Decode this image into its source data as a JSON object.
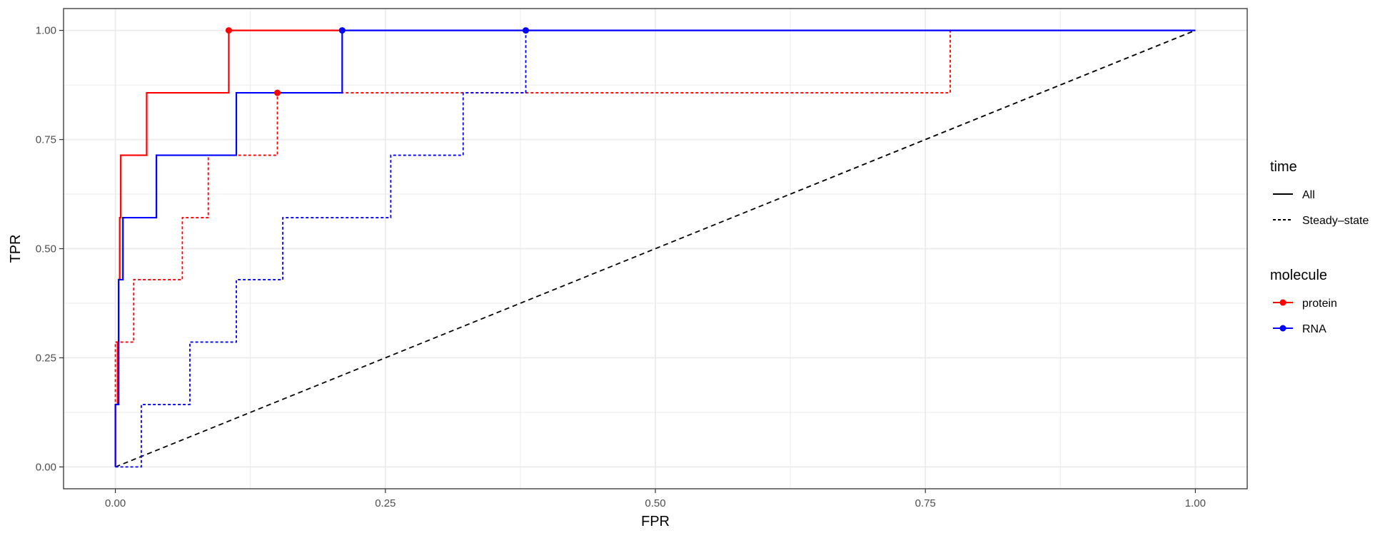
{
  "chart_data": {
    "type": "line",
    "xlabel": "FPR",
    "ylabel": "TPR",
    "xlim": [
      -0.048,
      1.048
    ],
    "ylim": [
      -0.05,
      1.05
    ],
    "x_ticks": [
      "0.00",
      "0.25",
      "0.50",
      "0.75",
      "1.00"
    ],
    "y_ticks": [
      "0.00",
      "0.25",
      "0.50",
      "0.75",
      "1.00"
    ],
    "grid": true,
    "legend_position": "right",
    "colors": {
      "protein": "#ff0000",
      "RNA": "#0000ff",
      "diagonal": "#000000",
      "grid": "#ebebeb",
      "panel_border": "#333333"
    },
    "legends": [
      {
        "title": "time",
        "items": [
          {
            "label": "All",
            "linetype": "solid"
          },
          {
            "label": "Steady–state",
            "linetype": "dashed"
          }
        ]
      },
      {
        "title": "molecule",
        "items": [
          {
            "label": "protein",
            "color": "#ff0000",
            "marker": "point"
          },
          {
            "label": "RNA",
            "color": "#0000ff",
            "marker": "point"
          }
        ]
      }
    ],
    "series": [
      {
        "molecule": "protein",
        "time": "All",
        "color": "#ff0000",
        "linetype": "solid",
        "points": [
          [
            0.0,
            0.0
          ],
          [
            0.0,
            0.143
          ],
          [
            0.002,
            0.143
          ],
          [
            0.002,
            0.286
          ],
          [
            0.003,
            0.286
          ],
          [
            0.003,
            0.429
          ],
          [
            0.004,
            0.429
          ],
          [
            0.004,
            0.571
          ],
          [
            0.005,
            0.571
          ],
          [
            0.005,
            0.714
          ],
          [
            0.029,
            0.714
          ],
          [
            0.029,
            0.857
          ],
          [
            0.105,
            0.857
          ],
          [
            0.105,
            1.0
          ],
          [
            0.21,
            1.0
          ]
        ],
        "marker": [
          0.105,
          1.0
        ]
      },
      {
        "molecule": "RNA",
        "time": "All",
        "color": "#0000ff",
        "linetype": "solid",
        "points": [
          [
            0.0,
            0.0
          ],
          [
            0.0,
            0.143
          ],
          [
            0.003,
            0.143
          ],
          [
            0.003,
            0.429
          ],
          [
            0.007,
            0.429
          ],
          [
            0.007,
            0.571
          ],
          [
            0.038,
            0.571
          ],
          [
            0.038,
            0.714
          ],
          [
            0.112,
            0.714
          ],
          [
            0.112,
            0.857
          ],
          [
            0.21,
            0.857
          ],
          [
            0.21,
            1.0
          ],
          [
            1.0,
            1.0
          ]
        ],
        "marker": [
          0.21,
          1.0
        ]
      },
      {
        "molecule": "protein",
        "time": "Steady–state",
        "color": "#ff0000",
        "linetype": "dashed",
        "points": [
          [
            0.0,
            0.0
          ],
          [
            0.0,
            0.286
          ],
          [
            0.017,
            0.286
          ],
          [
            0.017,
            0.429
          ],
          [
            0.062,
            0.429
          ],
          [
            0.062,
            0.571
          ],
          [
            0.086,
            0.571
          ],
          [
            0.086,
            0.714
          ],
          [
            0.15,
            0.714
          ],
          [
            0.15,
            0.857
          ],
          [
            0.773,
            0.857
          ],
          [
            0.773,
            1.0
          ],
          [
            1.0,
            1.0
          ]
        ],
        "marker": [
          0.15,
          0.857
        ]
      },
      {
        "molecule": "RNA",
        "time": "Steady–state",
        "color": "#0000ff",
        "linetype": "dashed",
        "points": [
          [
            0.0,
            0.0
          ],
          [
            0.024,
            0.0
          ],
          [
            0.024,
            0.143
          ],
          [
            0.069,
            0.143
          ],
          [
            0.069,
            0.286
          ],
          [
            0.112,
            0.286
          ],
          [
            0.112,
            0.429
          ],
          [
            0.155,
            0.429
          ],
          [
            0.155,
            0.571
          ],
          [
            0.255,
            0.571
          ],
          [
            0.255,
            0.714
          ],
          [
            0.322,
            0.714
          ],
          [
            0.322,
            0.857
          ],
          [
            0.38,
            0.857
          ],
          [
            0.38,
            1.0
          ],
          [
            1.0,
            1.0
          ]
        ],
        "marker": [
          0.38,
          1.0
        ]
      }
    ],
    "reference_line": {
      "from": [
        0.0,
        0.0
      ],
      "to": [
        1.0,
        1.0
      ],
      "linetype": "dashed",
      "color": "#000000"
    }
  }
}
